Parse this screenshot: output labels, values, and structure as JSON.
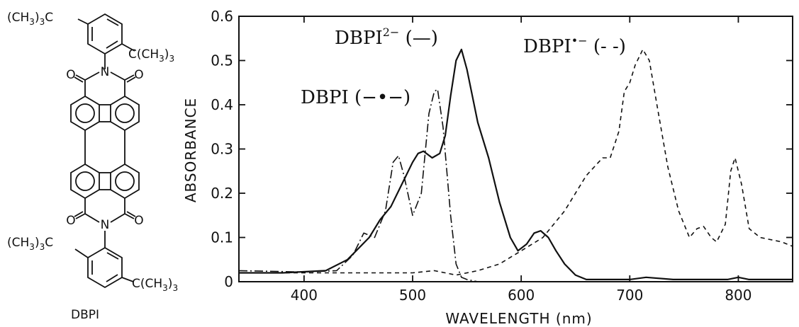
{
  "structure": {
    "label": "DBPI",
    "substituent_top_left": [
      "(CH",
      "3",
      ")",
      "3",
      "C"
    ],
    "substituent_top_right": [
      "C(CH",
      "3",
      ")",
      "3"
    ],
    "substituent_bottom_left": [
      "(CH",
      "3",
      ")",
      "3",
      "C"
    ],
    "substituent_bottom_right": [
      "C(CH",
      "3",
      ")",
      "3"
    ],
    "atom_N": "N",
    "atom_O": "O"
  },
  "chart_data": {
    "type": "line",
    "xlabel": "WAVELENGTH (nm)",
    "ylabel": "ABSORBANCE",
    "xlim": [
      340,
      850
    ],
    "ylim": [
      0,
      0.6
    ],
    "xticks": [
      400,
      500,
      600,
      700,
      800
    ],
    "yticks": [
      0,
      0.1,
      0.2,
      0.3,
      0.4,
      0.5,
      0.6
    ],
    "ytick_labels": [
      "0",
      "0.1",
      "0.2",
      "0.3",
      "0.4",
      "0.5",
      "0.6"
    ],
    "grid": false,
    "annotations": [
      {
        "base": "DBPI",
        "sup": "2−",
        "tail": " (—)",
        "series": "DBPI2-"
      },
      {
        "base": "DBPI",
        "sup": "•−",
        "tail": " (- -)",
        "series": "DBPI•-"
      },
      {
        "base": "DBPI",
        "sup": "",
        "tail": " (−•−)",
        "series": "DBPI"
      }
    ],
    "series": [
      {
        "key": "DBPI2-",
        "style": "solid",
        "x": [
          340,
          380,
          420,
          440,
          460,
          470,
          480,
          490,
          500,
          505,
          510,
          518,
          525,
          530,
          535,
          540,
          545,
          550,
          560,
          570,
          580,
          590,
          597,
          605,
          612,
          618,
          625,
          632,
          640,
          650,
          660,
          700,
          715,
          740,
          790,
          800,
          810,
          850
        ],
        "y": [
          0.02,
          0.02,
          0.025,
          0.05,
          0.1,
          0.14,
          0.17,
          0.22,
          0.27,
          0.29,
          0.295,
          0.28,
          0.29,
          0.33,
          0.42,
          0.5,
          0.525,
          0.48,
          0.36,
          0.28,
          0.18,
          0.1,
          0.07,
          0.085,
          0.11,
          0.115,
          0.1,
          0.07,
          0.04,
          0.015,
          0.005,
          0.005,
          0.01,
          0.005,
          0.005,
          0.01,
          0.005,
          0.005
        ]
      },
      {
        "key": "DBPI",
        "style": "dashdot",
        "x": [
          340,
          400,
          430,
          445,
          455,
          465,
          475,
          482,
          487,
          492,
          500,
          508,
          515,
          520,
          523,
          528,
          535,
          540,
          545,
          550,
          560
        ],
        "y": [
          0.025,
          0.022,
          0.025,
          0.06,
          0.11,
          0.1,
          0.16,
          0.27,
          0.285,
          0.24,
          0.15,
          0.2,
          0.38,
          0.43,
          0.435,
          0.35,
          0.15,
          0.04,
          0.01,
          0.005,
          0
        ]
      },
      {
        "key": "DBPI•-",
        "style": "dashed",
        "x": [
          340,
          400,
          460,
          500,
          520,
          530,
          540,
          560,
          580,
          600,
          620,
          640,
          660,
          675,
          682,
          690,
          695,
          700,
          705,
          712,
          718,
          725,
          735,
          745,
          755,
          762,
          768,
          775,
          780,
          788,
          793,
          797,
          803,
          810,
          820,
          840,
          850
        ],
        "y": [
          0.02,
          0.02,
          0.02,
          0.02,
          0.025,
          0.02,
          0.015,
          0.025,
          0.04,
          0.07,
          0.1,
          0.16,
          0.24,
          0.28,
          0.28,
          0.34,
          0.43,
          0.45,
          0.49,
          0.525,
          0.5,
          0.4,
          0.26,
          0.16,
          0.1,
          0.12,
          0.125,
          0.1,
          0.09,
          0.13,
          0.25,
          0.28,
          0.22,
          0.12,
          0.1,
          0.09,
          0.08
        ]
      }
    ]
  }
}
